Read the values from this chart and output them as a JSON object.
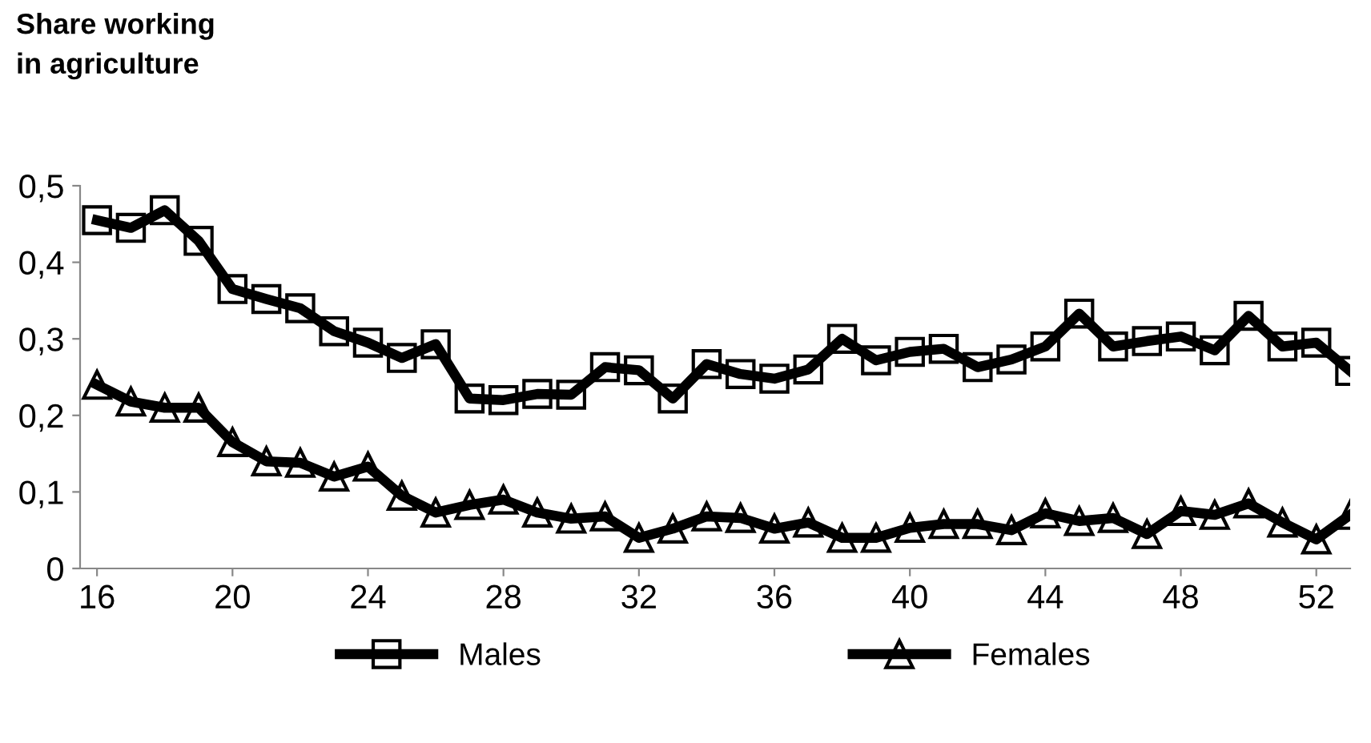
{
  "chart_data": {
    "type": "line",
    "title": "Share working\nin agriculture",
    "x": [
      16,
      17,
      18,
      19,
      20,
      21,
      22,
      23,
      24,
      25,
      26,
      27,
      28,
      29,
      30,
      31,
      32,
      33,
      34,
      35,
      36,
      37,
      38,
      39,
      40,
      41,
      42,
      43,
      44,
      45,
      46,
      47,
      48,
      49,
      50,
      51,
      52,
      53
    ],
    "series": [
      {
        "name": "Males",
        "color": "#000000",
        "marker": "square",
        "values": [
          0.455,
          0.445,
          0.468,
          0.428,
          0.365,
          0.352,
          0.34,
          0.31,
          0.295,
          0.275,
          0.293,
          0.222,
          0.22,
          0.228,
          0.227,
          0.263,
          0.259,
          0.222,
          0.267,
          0.254,
          0.248,
          0.26,
          0.3,
          0.272,
          0.283,
          0.287,
          0.263,
          0.273,
          0.29,
          0.333,
          0.29,
          0.297,
          0.303,
          0.285,
          0.33,
          0.29,
          0.295,
          0.258
        ]
      },
      {
        "name": "Females",
        "color": "#000000",
        "marker": "triangle",
        "values": [
          0.24,
          0.218,
          0.21,
          0.21,
          0.165,
          0.14,
          0.138,
          0.12,
          0.133,
          0.095,
          0.073,
          0.083,
          0.09,
          0.073,
          0.065,
          0.068,
          0.04,
          0.052,
          0.068,
          0.066,
          0.052,
          0.06,
          0.04,
          0.04,
          0.053,
          0.058,
          0.058,
          0.05,
          0.072,
          0.062,
          0.066,
          0.045,
          0.075,
          0.07,
          0.085,
          0.06,
          0.038,
          0.07
        ]
      }
    ],
    "xlim": [
      15.5,
      53
    ],
    "xticks": [
      16,
      20,
      24,
      28,
      32,
      36,
      40,
      44,
      48,
      52
    ],
    "ylim": [
      0,
      0.5
    ],
    "yticks": [
      0,
      {
        "value": 0.1,
        "label": "0,1"
      },
      {
        "value": 0.2,
        "label": "0,2"
      },
      {
        "value": 0.3,
        "label": "0,3"
      },
      {
        "value": 0.4,
        "label": "0,4"
      },
      {
        "value": 0.5,
        "label": "0,5"
      }
    ],
    "grid": false,
    "legend": "bottom",
    "line_style": "solid"
  }
}
